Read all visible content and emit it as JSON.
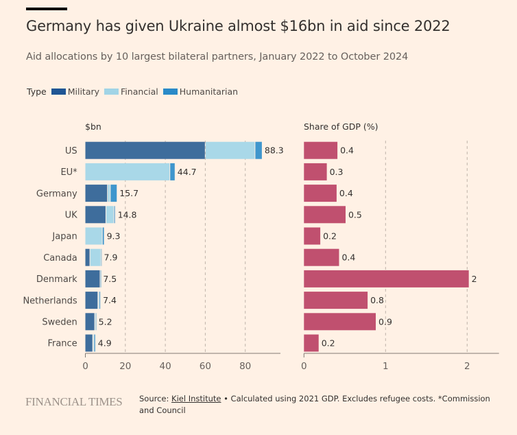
{
  "header": {
    "title": "Germany has given Ukraine almost $16bn in aid since 2022",
    "subtitle": "Aid allocations by 10 largest bilateral partners, January 2022 to October 2024"
  },
  "legend": {
    "label": "Type",
    "items": [
      {
        "name": "Military",
        "color": "#1f5694"
      },
      {
        "name": "Financial",
        "color": "#a1d4e6"
      },
      {
        "name": "Humanitarian",
        "color": "#2a8ac8"
      }
    ]
  },
  "chart_data": [
    {
      "type": "bar",
      "orientation": "horizontal",
      "stacked": true,
      "title": "$bn",
      "xlabel": "",
      "ylabel": "",
      "xlim": [
        0,
        97.6
      ],
      "xticks": [
        0,
        20,
        40,
        60,
        80
      ],
      "grid": true,
      "legend": "top-left",
      "categories": [
        "US",
        "EU*",
        "Germany",
        "UK",
        "Japan",
        "Canada",
        "Denmark",
        "Netherlands",
        "Sweden",
        "France"
      ],
      "series": [
        {
          "name": "Military",
          "color": "#3e6d9c",
          "values": [
            59.8,
            0,
            10.9,
            10.1,
            0,
            2.1,
            7.2,
            6.1,
            4.5,
            3.5
          ]
        },
        {
          "name": "Financial",
          "color": "#a9d8e8",
          "values": [
            24.9,
            42.1,
            1.4,
            4.0,
            8.3,
            5.5,
            0.1,
            0.6,
            0.4,
            0.6
          ]
        },
        {
          "name": "Humanitarian",
          "color": "#3f96cd",
          "values": [
            3.6,
            2.6,
            3.4,
            0.7,
            1.0,
            0.3,
            0.2,
            0.7,
            0.3,
            0.8
          ]
        }
      ],
      "totals": [
        88.3,
        44.7,
        15.7,
        14.8,
        9.3,
        7.9,
        7.5,
        7.4,
        5.2,
        4.9
      ],
      "data_labels": [
        "88.3",
        "44.7",
        "15.7",
        "14.8",
        "9.3",
        "7.9",
        "7.5",
        "7.4",
        "5.2",
        "4.9"
      ]
    },
    {
      "type": "bar",
      "orientation": "horizontal",
      "title": "Share of GDP (%)",
      "xlabel": "",
      "ylabel": "",
      "xlim": [
        0,
        2.39
      ],
      "xticks": [
        0,
        1,
        2
      ],
      "grid": true,
      "categories": [
        "US",
        "EU*",
        "Germany",
        "UK",
        "Japan",
        "Canada",
        "Denmark",
        "Netherlands",
        "Sweden",
        "France"
      ],
      "color": "#c0506f",
      "values": [
        0.41,
        0.28,
        0.4,
        0.51,
        0.2,
        0.43,
        2.02,
        0.78,
        0.88,
        0.18
      ],
      "data_labels": [
        "0.4",
        "0.3",
        "0.4",
        "0.5",
        "0.2",
        "0.4",
        "2",
        "0.8",
        "0.9",
        "0.2"
      ]
    }
  ],
  "footer": {
    "logo": "FINANCIAL TIMES",
    "source_prefix": "Source: ",
    "source_link": "Kiel Institute",
    "source_rest": " • Calculated using 2021 GDP. Excludes refugee costs. *Commission and Council"
  }
}
